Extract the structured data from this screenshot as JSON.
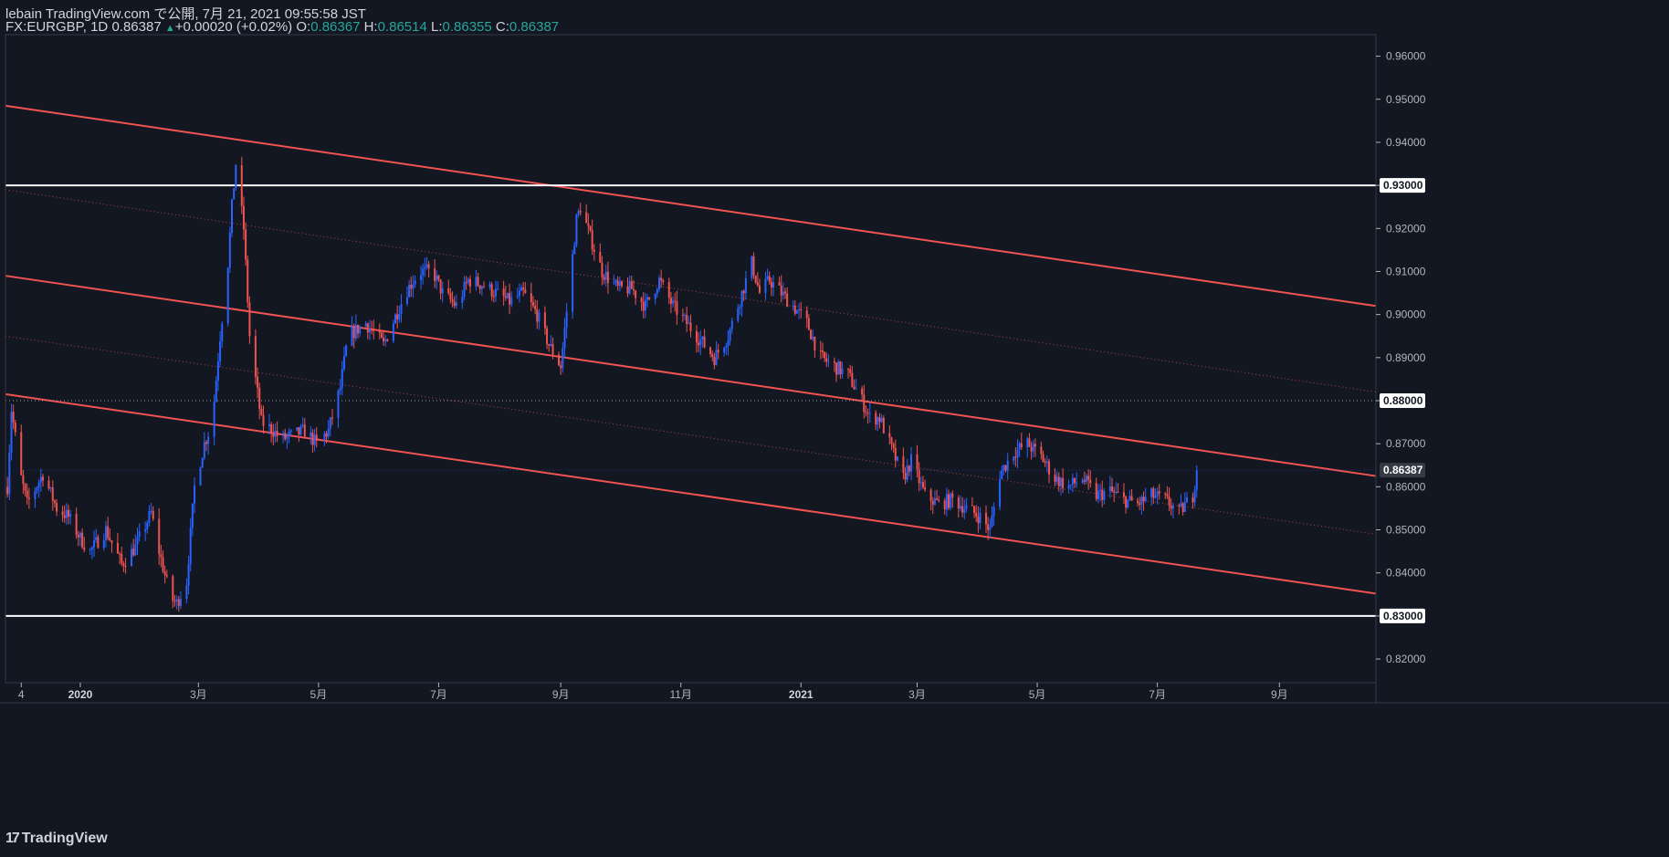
{
  "header": {
    "line1": "lebain TradingView.com で公開, 7月 21, 2021 09:55:58 JST",
    "symbol": "FX:EURGBP, 1D",
    "last": "0.86387",
    "arrow": "▲",
    "change": "+0.00020 (+0.02%)",
    "o_label": "O:",
    "o_value": "0.86367",
    "h_label": "H:",
    "h_value": "0.86514",
    "l_label": "L:",
    "l_value": "0.86355",
    "c_label": "C:",
    "c_value": "0.86387"
  },
  "brand": {
    "logo": "17",
    "name": "TradingView"
  },
  "colors": {
    "background": "#131722",
    "up": "#2962ff",
    "down": "#ef5350",
    "channel": "#f05350",
    "level": "#ffffff",
    "axis": "#b2b5be",
    "grid": "#2a2e39"
  },
  "chart_data": {
    "type": "candlestick",
    "symbol": "FX:EURGBP",
    "interval": "1D",
    "ylim": [
      0.8145,
      0.965
    ],
    "xlim": [
      "2019-11-24",
      "2021-10-20"
    ],
    "y_ticks": [
      "0.82000",
      "0.83000",
      "0.84000",
      "0.85000",
      "0.86000",
      "0.87000",
      "0.88000",
      "0.89000",
      "0.90000",
      "0.91000",
      "0.92000",
      "0.93000",
      "0.94000",
      "0.95000",
      "0.96000"
    ],
    "x_ticks": [
      {
        "label": "4",
        "date": "2019-12-02",
        "bold": false
      },
      {
        "label": "2020",
        "date": "2020-01-01",
        "bold": true
      },
      {
        "label": "3月",
        "date": "2020-03-01",
        "bold": false
      },
      {
        "label": "5月",
        "date": "2020-05-01",
        "bold": false
      },
      {
        "label": "7月",
        "date": "2020-07-01",
        "bold": false
      },
      {
        "label": "9月",
        "date": "2020-09-01",
        "bold": false
      },
      {
        "label": "11月",
        "date": "2020-11-01",
        "bold": false
      },
      {
        "label": "2021",
        "date": "2021-01-01",
        "bold": true
      },
      {
        "label": "3月",
        "date": "2021-03-01",
        "bold": false
      },
      {
        "label": "5月",
        "date": "2021-05-01",
        "bold": false
      },
      {
        "label": "7月",
        "date": "2021-07-01",
        "bold": false
      },
      {
        "label": "9月",
        "date": "2021-09-01",
        "bold": false
      }
    ],
    "price_path": [
      [
        "2019-11-25",
        0.86
      ],
      [
        "2019-11-27",
        0.878
      ],
      [
        "2019-12-02",
        0.862
      ],
      [
        "2019-12-05",
        0.856
      ],
      [
        "2019-12-13",
        0.863
      ],
      [
        "2019-12-20",
        0.855
      ],
      [
        "2019-12-26",
        0.853
      ],
      [
        "2020-01-01",
        0.848
      ],
      [
        "2020-01-06",
        0.845
      ],
      [
        "2020-01-14",
        0.85
      ],
      [
        "2020-01-22",
        0.842
      ],
      [
        "2020-01-29",
        0.846
      ],
      [
        "2020-02-06",
        0.854
      ],
      [
        "2020-02-10",
        0.845
      ],
      [
        "2020-02-16",
        0.834
      ],
      [
        "2020-02-19",
        0.833
      ],
      [
        "2020-02-24",
        0.838
      ],
      [
        "2020-02-28",
        0.86
      ],
      [
        "2020-03-04",
        0.87
      ],
      [
        "2020-03-08",
        0.875
      ],
      [
        "2020-03-12",
        0.895
      ],
      [
        "2020-03-16",
        0.912
      ],
      [
        "2020-03-18",
        0.925
      ],
      [
        "2020-03-20",
        0.935
      ],
      [
        "2020-03-24",
        0.92
      ],
      [
        "2020-03-27",
        0.895
      ],
      [
        "2020-04-02",
        0.875
      ],
      [
        "2020-04-08",
        0.873
      ],
      [
        "2020-04-12",
        0.871
      ],
      [
        "2020-04-18",
        0.872
      ],
      [
        "2020-04-24",
        0.873
      ],
      [
        "2020-04-30",
        0.87
      ],
      [
        "2020-05-06",
        0.873
      ],
      [
        "2020-05-12",
        0.883
      ],
      [
        "2020-05-16",
        0.895
      ],
      [
        "2020-05-25",
        0.898
      ],
      [
        "2020-06-03",
        0.893
      ],
      [
        "2020-06-14",
        0.905
      ],
      [
        "2020-06-21",
        0.91
      ],
      [
        "2020-06-28",
        0.91
      ],
      [
        "2020-07-03",
        0.905
      ],
      [
        "2020-07-10",
        0.902
      ],
      [
        "2020-07-16",
        0.908
      ],
      [
        "2020-07-23",
        0.907
      ],
      [
        "2020-07-30",
        0.905
      ],
      [
        "2020-08-06",
        0.903
      ],
      [
        "2020-08-13",
        0.905
      ],
      [
        "2020-08-20",
        0.9
      ],
      [
        "2020-08-26",
        0.893
      ],
      [
        "2020-09-01",
        0.888
      ],
      [
        "2020-09-05",
        0.905
      ],
      [
        "2020-09-09",
        0.922
      ],
      [
        "2020-09-11",
        0.925
      ],
      [
        "2020-09-16",
        0.918
      ],
      [
        "2020-09-22",
        0.91
      ],
      [
        "2020-09-30",
        0.906
      ],
      [
        "2020-10-07",
        0.906
      ],
      [
        "2020-10-14",
        0.902
      ],
      [
        "2020-10-21",
        0.908
      ],
      [
        "2020-10-28",
        0.902
      ],
      [
        "2020-11-04",
        0.898
      ],
      [
        "2020-11-11",
        0.894
      ],
      [
        "2020-11-18",
        0.89
      ],
      [
        "2020-11-25",
        0.895
      ],
      [
        "2020-12-02",
        0.905
      ],
      [
        "2020-12-07",
        0.912
      ],
      [
        "2020-12-11",
        0.905
      ],
      [
        "2020-12-16",
        0.908
      ],
      [
        "2020-12-22",
        0.905
      ],
      [
        "2020-12-28",
        0.902
      ],
      [
        "2021-01-04",
        0.898
      ],
      [
        "2021-01-11",
        0.89
      ],
      [
        "2021-01-18",
        0.888
      ],
      [
        "2021-01-25",
        0.886
      ],
      [
        "2021-02-01",
        0.88
      ],
      [
        "2021-02-05",
        0.876
      ],
      [
        "2021-02-10",
        0.876
      ],
      [
        "2021-02-15",
        0.87
      ],
      [
        "2021-02-22",
        0.862
      ],
      [
        "2021-02-26",
        0.866
      ],
      [
        "2021-03-05",
        0.858
      ],
      [
        "2021-03-12",
        0.856
      ],
      [
        "2021-03-19",
        0.857
      ],
      [
        "2021-03-26",
        0.855
      ],
      [
        "2021-04-02",
        0.853
      ],
      [
        "2021-04-07",
        0.85
      ],
      [
        "2021-04-12",
        0.863
      ],
      [
        "2021-04-19",
        0.868
      ],
      [
        "2021-04-26",
        0.87
      ],
      [
        "2021-05-03",
        0.867
      ],
      [
        "2021-05-10",
        0.862
      ],
      [
        "2021-05-17",
        0.86
      ],
      [
        "2021-05-24",
        0.862
      ],
      [
        "2021-05-31",
        0.858
      ],
      [
        "2021-06-07",
        0.859
      ],
      [
        "2021-06-14",
        0.857
      ],
      [
        "2021-06-21",
        0.856
      ],
      [
        "2021-06-28",
        0.858
      ],
      [
        "2021-07-05",
        0.857
      ],
      [
        "2021-07-12",
        0.854
      ],
      [
        "2021-07-19",
        0.858
      ],
      [
        "2021-07-21",
        0.864
      ]
    ],
    "channel_lines": [
      {
        "from": [
          "2019-11-24",
          0.9485
        ],
        "to": [
          "2021-10-20",
          0.902
        ],
        "style": "solid"
      },
      {
        "from": [
          "2019-11-24",
          0.929
        ],
        "to": [
          "2021-10-20",
          0.882
        ],
        "style": "dotted"
      },
      {
        "from": [
          "2019-11-24",
          0.909
        ],
        "to": [
          "2021-10-20",
          0.8625
        ],
        "style": "solid"
      },
      {
        "from": [
          "2019-11-24",
          0.895
        ],
        "to": [
          "2021-10-20",
          0.849
        ],
        "style": "dotted"
      },
      {
        "from": [
          "2019-11-24",
          0.8815
        ],
        "to": [
          "2021-10-20",
          0.8352
        ],
        "style": "solid"
      }
    ],
    "horizontal_levels": [
      {
        "value": 0.93,
        "label": "0.93000",
        "style": "solid"
      },
      {
        "value": 0.83,
        "label": "0.83000",
        "style": "solid"
      },
      {
        "value": 0.88,
        "label": "0.88000",
        "style": "dotted"
      }
    ],
    "last_price": {
      "value": 0.86387,
      "label": "0.86387"
    }
  }
}
